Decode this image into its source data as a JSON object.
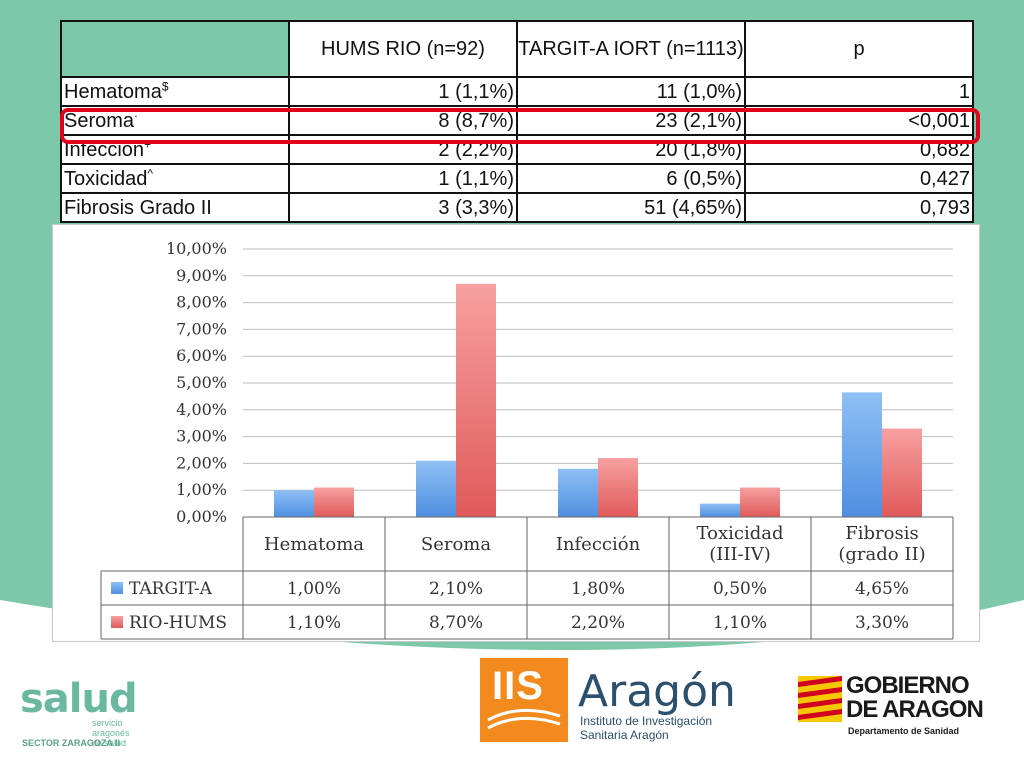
{
  "table": {
    "headers": [
      "",
      "HUMS RIO (n=92)",
      "TARGIT-A IORT (n=1113)",
      "p"
    ],
    "rows": [
      {
        "label": "Hematoma",
        "sup": "$",
        "hums": "1 (1,1%)",
        "targit": "11 (1,0%)",
        "p": "1"
      },
      {
        "label": "Seroma",
        "sup": "·",
        "hums": "8 (8,7%)",
        "targit": "23 (2,1%)",
        "p": "<0,001"
      },
      {
        "label": "Infección",
        "sup": "+",
        "hums": "2 (2,2%)",
        "targit": "20 (1,8%)",
        "p": "0,682"
      },
      {
        "label": "Toxicidad",
        "sup": "^",
        "hums": "1 (1,1%)",
        "targit": "6 (0,5%)",
        "p": "0,427"
      },
      {
        "label": "Fibrosis Grado II",
        "sup": "",
        "hums": "3 (3,3%)",
        "targit": "51 (4,65%)",
        "p": "0,793"
      }
    ],
    "highlight_color": "#e0001b"
  },
  "chart_data": {
    "type": "bar",
    "categories": [
      "Hematoma",
      "Seroma",
      "Infección",
      "Toxicidad (III-IV)",
      "Fibrosis (grado II)"
    ],
    "category_lines": [
      [
        "Hematoma"
      ],
      [
        "Seroma"
      ],
      [
        "Infección"
      ],
      [
        "Toxicidad",
        "(III-IV)"
      ],
      [
        "Fibrosis",
        "(grado II)"
      ]
    ],
    "series": [
      {
        "name": "TARGIT-A",
        "values": [
          1.0,
          2.1,
          1.8,
          0.5,
          4.65
        ],
        "labels": [
          "1,00%",
          "2,10%",
          "1,80%",
          "0,50%",
          "4,65%"
        ],
        "color": "#4f8fe0"
      },
      {
        "name": "RIO-HUMS",
        "values": [
          1.1,
          8.7,
          2.2,
          1.1,
          3.3
        ],
        "labels": [
          "1,10%",
          "8,70%",
          "2,20%",
          "1,10%",
          "3,30%"
        ],
        "color": "#e05a5a"
      }
    ],
    "ylim": [
      0,
      10
    ],
    "yticks": [
      "0,00%",
      "1,00%",
      "2,00%",
      "3,00%",
      "4,00%",
      "5,00%",
      "6,00%",
      "7,00%",
      "8,00%",
      "9,00%",
      "10,00%"
    ],
    "grid": true,
    "legend": "data-table"
  },
  "footer": {
    "salud": {
      "word": "salud",
      "sub1": "servicio aragonés",
      "sub2": "de salud",
      "sector": "SECTOR ZARAGOZA II"
    },
    "iis": {
      "letters": "IIS",
      "name": "Aragón",
      "line1": "Instituto de Investigación",
      "line2": "Sanitaria Aragón"
    },
    "gobierno": {
      "line1": "GOBIERNO",
      "line2": "DE ARAGON",
      "dept": "Departamento de Sanidad"
    }
  },
  "colors": {
    "accent_green": "#7cc8a9"
  }
}
